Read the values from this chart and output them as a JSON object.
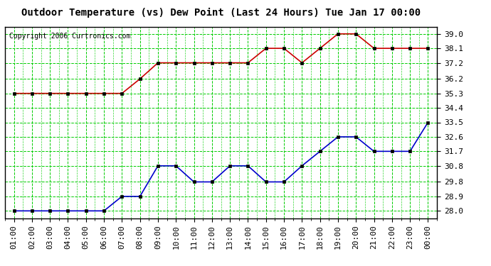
{
  "title": "Outdoor Temperature (vs) Dew Point (Last 24 Hours) Tue Jan 17 00:00",
  "copyright": "Copyright 2006 Curtronics.com",
  "background_color": "#ffffff",
  "plot_bg_color": "#ffffff",
  "grid_color": "#00cc00",
  "x_labels": [
    "01:00",
    "02:00",
    "03:00",
    "04:00",
    "05:00",
    "06:00",
    "07:00",
    "08:00",
    "09:00",
    "10:00",
    "11:00",
    "12:00",
    "13:00",
    "14:00",
    "15:00",
    "16:00",
    "17:00",
    "18:00",
    "19:00",
    "20:00",
    "21:00",
    "22:00",
    "23:00",
    "00:00"
  ],
  "x_indices": [
    0,
    1,
    2,
    3,
    4,
    5,
    6,
    7,
    8,
    9,
    10,
    11,
    12,
    13,
    14,
    15,
    16,
    17,
    18,
    19,
    20,
    21,
    22,
    23
  ],
  "temp_data": [
    35.3,
    35.3,
    35.3,
    35.3,
    35.3,
    35.3,
    35.3,
    36.2,
    37.2,
    37.2,
    37.2,
    37.2,
    37.2,
    37.2,
    38.1,
    38.1,
    37.2,
    38.1,
    39.0,
    39.0,
    38.1,
    38.1,
    38.1,
    38.1
  ],
  "dew_data": [
    28.0,
    28.0,
    28.0,
    28.0,
    28.0,
    28.0,
    28.9,
    28.9,
    30.8,
    30.8,
    29.8,
    29.8,
    30.8,
    30.8,
    29.8,
    29.8,
    30.8,
    31.7,
    32.6,
    32.6,
    31.7,
    31.7,
    31.7,
    33.5
  ],
  "temp_color": "#cc0000",
  "dew_color": "#0000cc",
  "marker": "s",
  "marker_size": 3,
  "ylim": [
    27.55,
    39.45
  ],
  "yticks": [
    28.0,
    28.9,
    29.8,
    30.8,
    31.7,
    32.6,
    33.5,
    34.4,
    35.3,
    36.2,
    37.2,
    38.1,
    39.0
  ],
  "title_fontsize": 10,
  "copyright_fontsize": 7,
  "tick_fontsize": 8
}
